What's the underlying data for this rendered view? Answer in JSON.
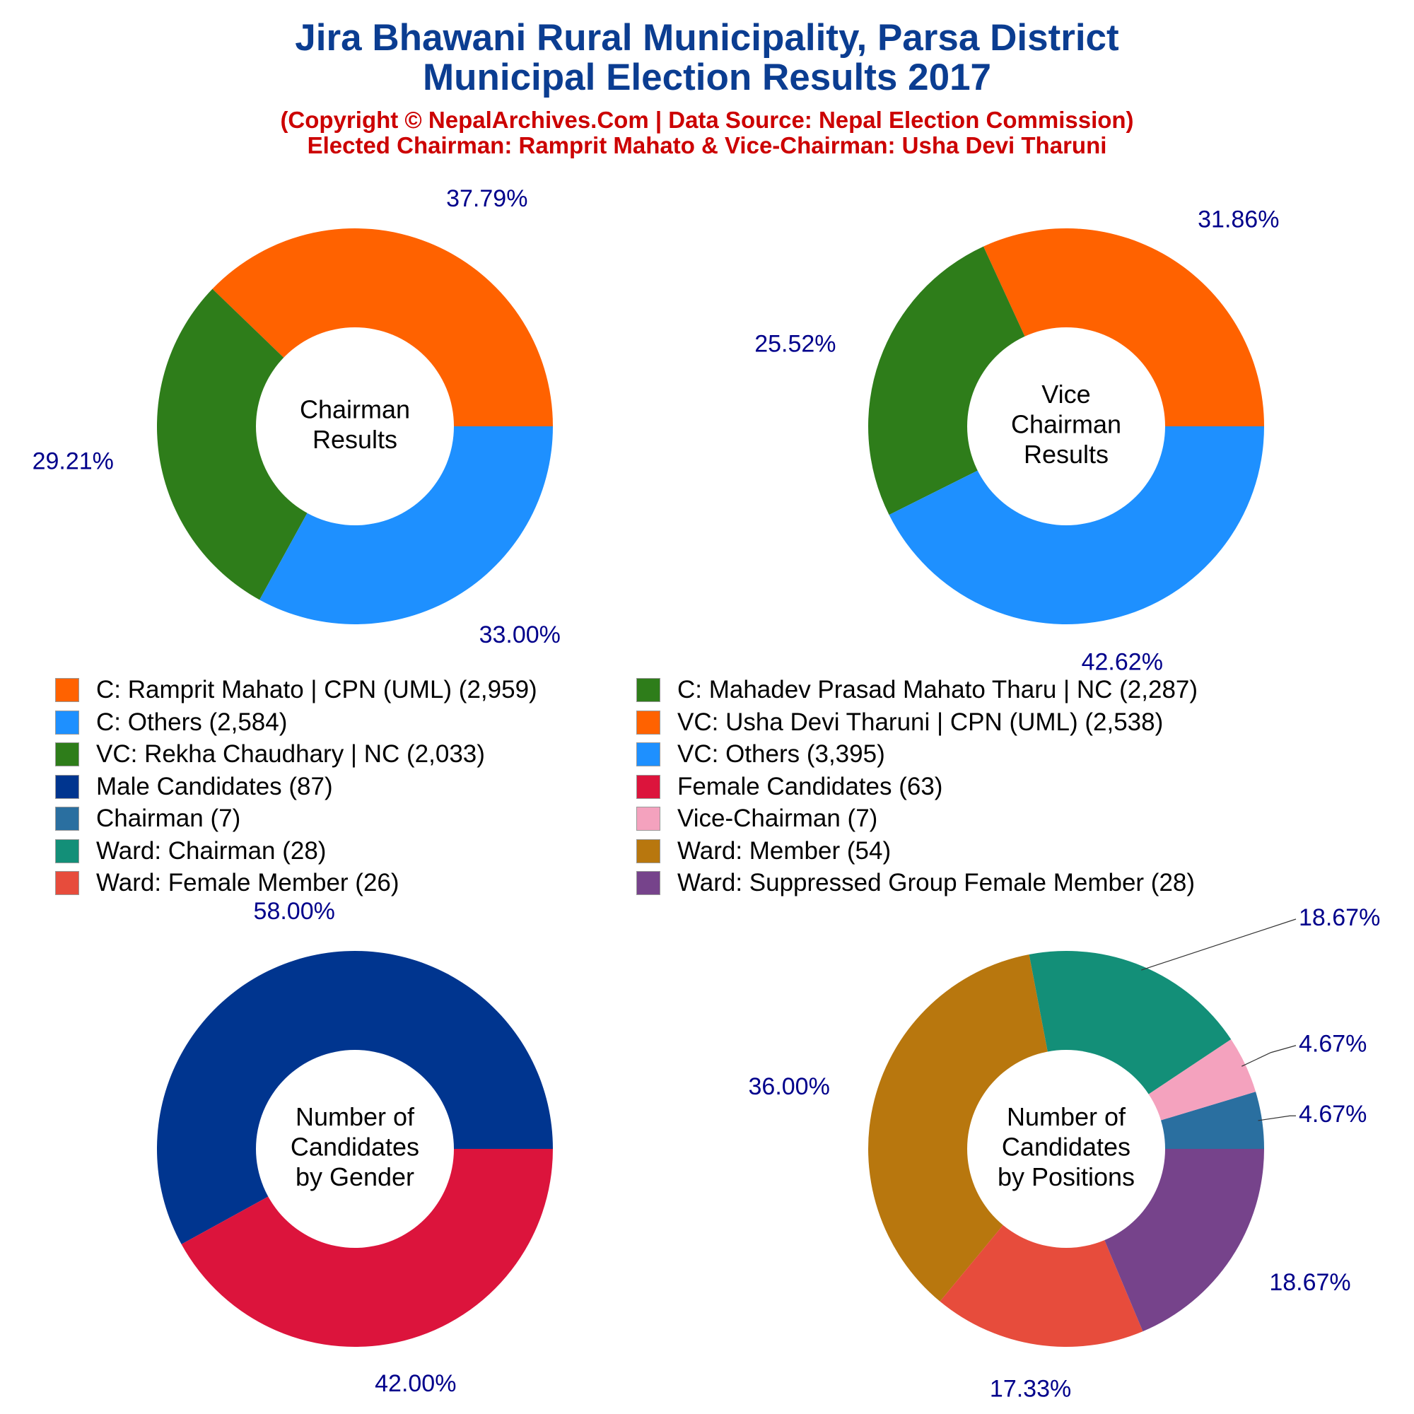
{
  "header": {
    "title_line1": "Jira Bhawani Rural Municipality, Parsa District",
    "title_line2": "Municipal Election Results 2017",
    "subtitle_line1": "(Copyright © NepalArchives.Com | Data Source: Nepal Election Commission)",
    "subtitle_line2": "Elected Chairman: Ramprit Mahato & Vice-Chairman: Usha Devi Tharuni"
  },
  "legend": [
    {
      "label": "C: Ramprit Mahato | CPN (UML) (2,959)",
      "color": "#ff6200"
    },
    {
      "label": "C: Mahadev Prasad Mahato Tharu | NC (2,287)",
      "color": "#2e7d1a"
    },
    {
      "label": "C: Others (2,584)",
      "color": "#1e90ff"
    },
    {
      "label": "VC: Usha Devi Tharuni | CPN (UML) (2,538)",
      "color": "#ff6200"
    },
    {
      "label": "VC: Rekha Chaudhary | NC (2,033)",
      "color": "#2e7d1a"
    },
    {
      "label": "VC: Others (3,395)",
      "color": "#1e90ff"
    },
    {
      "label": "Male Candidates (87)",
      "color": "#00358f"
    },
    {
      "label": "Female Candidates (63)",
      "color": "#dc143c"
    },
    {
      "label": "Chairman (7)",
      "color": "#2a6fa0"
    },
    {
      "label": "Vice-Chairman (7)",
      "color": "#f4a2be"
    },
    {
      "label": "Ward: Chairman (28)",
      "color": "#138f78"
    },
    {
      "label": "Ward: Member (54)",
      "color": "#b8770e"
    },
    {
      "label": "Ward: Female Member (26)",
      "color": "#e74c3c"
    },
    {
      "label": "Ward: Suppressed Group Female Member (28)",
      "color": "#76438b"
    }
  ],
  "chart_data": [
    {
      "type": "pie",
      "center_label": [
        "Chairman",
        "Results"
      ],
      "label_color": "#00008b",
      "slices": [
        {
          "name": "C: Ramprit Mahato | CPN (UML)",
          "value": 2959,
          "percent_label": "37.79%",
          "color": "#ff6200"
        },
        {
          "name": "C: Mahadev Prasad Mahato Tharu | NC",
          "value": 2287,
          "percent_label": "29.21%",
          "color": "#2e7d1a"
        },
        {
          "name": "C: Others",
          "value": 2584,
          "percent_label": "33.00%",
          "color": "#1e90ff"
        }
      ]
    },
    {
      "type": "pie",
      "center_label": [
        "Vice",
        "Chairman",
        "Results"
      ],
      "label_color": "#00008b",
      "slices": [
        {
          "name": "VC: Usha Devi Tharuni | CPN (UML)",
          "value": 2538,
          "percent_label": "31.86%",
          "color": "#ff6200"
        },
        {
          "name": "VC: Rekha Chaudhary | NC",
          "value": 2033,
          "percent_label": "25.52%",
          "color": "#2e7d1a"
        },
        {
          "name": "VC: Others",
          "value": 3395,
          "percent_label": "42.62%",
          "color": "#1e90ff"
        }
      ]
    },
    {
      "type": "pie",
      "center_label": [
        "Number of",
        "Candidates",
        "by Gender"
      ],
      "label_color": "#00008b",
      "slices": [
        {
          "name": "Male Candidates",
          "value": 87,
          "percent_label": "58.00%",
          "color": "#00358f"
        },
        {
          "name": "Female Candidates",
          "value": 63,
          "percent_label": "42.00%",
          "color": "#dc143c"
        }
      ]
    },
    {
      "type": "pie",
      "center_label": [
        "Number of",
        "Candidates",
        "by Positions"
      ],
      "label_color": "#00008b",
      "slices": [
        {
          "name": "Chairman",
          "value": 7,
          "percent_label": "4.67%",
          "color": "#2a6fa0"
        },
        {
          "name": "Vice-Chairman",
          "value": 7,
          "percent_label": "4.67%",
          "color": "#f4a2be"
        },
        {
          "name": "Ward: Chairman",
          "value": 28,
          "percent_label": "18.67%",
          "color": "#138f78"
        },
        {
          "name": "Ward: Member",
          "value": 54,
          "percent_label": "36.00%",
          "color": "#b8770e"
        },
        {
          "name": "Ward: Female Member",
          "value": 26,
          "percent_label": "17.33%",
          "color": "#e74c3c"
        },
        {
          "name": "Ward: Suppressed Group Female Member",
          "value": 28,
          "percent_label": "18.67%",
          "color": "#76438b"
        }
      ]
    }
  ]
}
